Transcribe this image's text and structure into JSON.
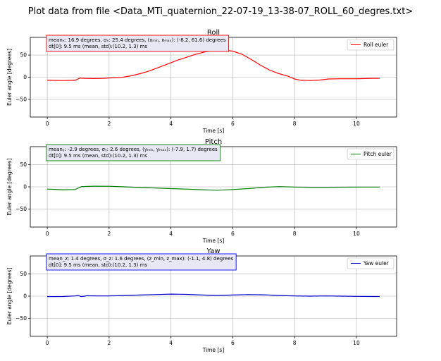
{
  "figure": {
    "title": "Plot data from file <Data_MTi_quaternion_22-07-19_13-38-07_ROLL_60_degres.txt>"
  },
  "chart_data": [
    {
      "type": "line",
      "title": "Roll",
      "xlabel": "Time [s]",
      "ylabel": "Euler angle [degrees]",
      "xlim": [
        -0.55,
        11.3
      ],
      "ylim": [
        -90,
        90
      ],
      "xticks": [
        0,
        2,
        4,
        6,
        8,
        10
      ],
      "yticks": [
        -50,
        0,
        50
      ],
      "grid": true,
      "legend_position": "top-right",
      "color": "#ff0000",
      "annotation_color": "#ff0000",
      "annotation": {
        "line1": "meanₓ: 16.9 degrees, σₓ: 25.4 degrees, (xₘᵢₙ, xₘₐₓ): (-8.2, 61.6) degrees",
        "line2": "dt[0]: 9.5 ms (mean, std):(10.2, 1.3) ms"
      },
      "series": [
        {
          "name": "Roll euler",
          "x": [
            0,
            0.5,
            0.9,
            1.05,
            1.2,
            1.5,
            1.8,
            2.1,
            2.4,
            2.7,
            3.0,
            3.3,
            3.6,
            3.9,
            4.2,
            4.5,
            4.8,
            5.1,
            5.4,
            5.7,
            6.0,
            6.3,
            6.6,
            6.9,
            7.2,
            7.5,
            7.8,
            8.0,
            8.2,
            8.5,
            8.8,
            9.1,
            9.5,
            10.0,
            10.5,
            10.75
          ],
          "y": [
            -7,
            -7.5,
            -7,
            -2,
            -2.5,
            -3,
            -2.5,
            -1.5,
            -0.5,
            3,
            8,
            14,
            22,
            30,
            38,
            45,
            52,
            57,
            60,
            61,
            59,
            52,
            40,
            27,
            16,
            8,
            2,
            -4,
            -7,
            -7.5,
            -6.5,
            -4,
            -3.5,
            -3.5,
            -2.5,
            -2.5
          ]
        }
      ]
    },
    {
      "type": "line",
      "title": "Pitch",
      "xlabel": "Time [s]",
      "ylabel": "Euler angle [degrees]",
      "xlim": [
        -0.55,
        11.3
      ],
      "ylim": [
        -90,
        90
      ],
      "xticks": [
        0,
        2,
        4,
        6,
        8,
        10
      ],
      "yticks": [
        -50,
        0,
        50
      ],
      "grid": true,
      "legend_position": "top-right",
      "color": "#008000",
      "annotation_color": "#008000",
      "annotation": {
        "line1": "meanᵧ: -2.9 degrees, σᵧ: 2.6 degrees, (yₘᵢₙ, yₘₐₓ): (-7.9, 1.7) degrees",
        "line2": "dt[0]: 9.5 ms (mean, std):(10.2, 1.3) ms"
      },
      "series": [
        {
          "name": "Pitch euler",
          "x": [
            0,
            0.5,
            0.9,
            1.1,
            1.5,
            2.0,
            2.5,
            3.0,
            3.5,
            4.0,
            4.5,
            5.0,
            5.5,
            6.0,
            6.5,
            7.0,
            7.5,
            8.0,
            8.5,
            9.0,
            9.5,
            10.0,
            10.5,
            10.75
          ],
          "y": [
            -5,
            -6.5,
            -6,
            0.5,
            1.5,
            1.2,
            0,
            -1.5,
            -2.5,
            -4,
            -5,
            -6.5,
            -7.5,
            -6,
            -4,
            -1,
            0.5,
            -0.5,
            -1,
            -1,
            -0.8,
            -0.5,
            -0.5,
            -0.5
          ]
        }
      ]
    },
    {
      "type": "line",
      "title": "Yaw",
      "xlabel": "Time [s]",
      "ylabel": "Euler angle [degrees]",
      "xlim": [
        -0.55,
        11.3
      ],
      "ylim": [
        -90,
        90
      ],
      "xticks": [
        0,
        2,
        4,
        6,
        8,
        10
      ],
      "yticks": [
        -50,
        0,
        50
      ],
      "grid": true,
      "legend_position": "top-right",
      "color": "#0000cc",
      "annotation_color": "#0000ff",
      "annotation": {
        "line1": "mean_z: 1.4 degrees, σ_z: 1.6 degrees, (z_min, z_max): (-1.1, 4.8) degrees",
        "line2": "dt[0]: 9.5 ms (mean, std):(10.2, 1.3) ms"
      },
      "series": [
        {
          "name": "Yaw euler",
          "x": [
            0,
            0.5,
            0.9,
            1.0,
            1.1,
            1.3,
            1.6,
            2.0,
            2.5,
            3.0,
            3.5,
            4.0,
            4.5,
            5.0,
            5.5,
            6.0,
            6.5,
            7.0,
            7.5,
            8.0,
            8.5,
            9.0,
            9.5,
            10.0,
            10.5,
            10.75
          ],
          "y": [
            -1,
            -0.8,
            0.5,
            1.5,
            -1,
            1,
            0.5,
            0.5,
            1.5,
            2.5,
            3.5,
            4.5,
            4,
            2.5,
            1.5,
            2.5,
            3.5,
            3,
            1.5,
            0.5,
            0,
            0.5,
            0,
            -0.5,
            -0.8,
            -0.8
          ]
        }
      ]
    }
  ]
}
